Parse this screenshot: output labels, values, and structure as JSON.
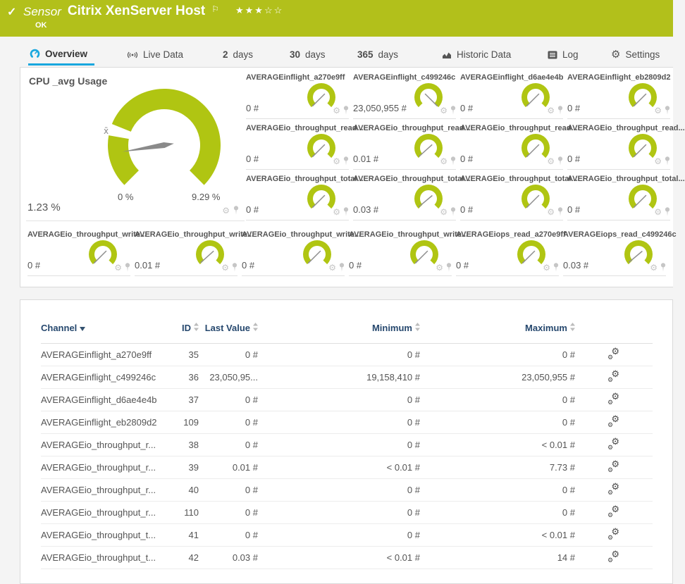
{
  "colors": {
    "header_green": "#b2c01b",
    "gauge_green": "#b0c512",
    "active_blue": "#19a7de",
    "table_header_text": "#26486e",
    "needle_gray": "#8a8a8a"
  },
  "icons": {
    "check": "✓",
    "flag": "⚐",
    "star_filled": "★",
    "star_empty": "☆",
    "gear": "⚙",
    "avg_marker": "x̄"
  },
  "header": {
    "type_label": "Sensor",
    "title": "Citrix XenServer Host",
    "status": "OK",
    "stars_filled": 3,
    "stars_total": 5
  },
  "tabs": [
    {
      "label": "Overview",
      "icon": "overview-gauge",
      "active": true
    },
    {
      "label": "Live Data",
      "icon": "live-data",
      "active": false
    },
    {
      "number": "2",
      "label": "days",
      "active": false
    },
    {
      "number": "30",
      "label": "days",
      "active": false
    },
    {
      "number": "365",
      "label": "days",
      "active": false
    },
    {
      "label": "Historic Data",
      "icon": "historic-data",
      "active": false
    },
    {
      "label": "Log",
      "icon": "log",
      "active": false
    },
    {
      "label": "Settings",
      "icon": "settings-gear",
      "active": false
    }
  ],
  "cpu_panel": {
    "title": "CPU _avg Usage",
    "value": "1.23 %",
    "scale_min": "0 %",
    "scale_max": "9.29 %",
    "needle_deg": 171
  },
  "gauge_rows": [
    [
      {
        "label": "AVERAGEinflight_a270e9ff",
        "value": "0 #",
        "needle_deg": 135
      },
      {
        "label": "AVERAGEinflight_c499246c",
        "value": "23,050,955 #",
        "needle_deg": 45
      },
      {
        "label": "AVERAGEinflight_d6ae4e4b",
        "value": "0 #",
        "needle_deg": 135
      },
      {
        "label": "AVERAGEinflight_eb2809d2",
        "value": "0 #",
        "needle_deg": 135
      }
    ],
    [
      {
        "label": "AVERAGEio_throughput_read...",
        "value": "0 #",
        "needle_deg": 135
      },
      {
        "label": "AVERAGEio_throughput_read...",
        "value": "0.01 #",
        "needle_deg": 138
      },
      {
        "label": "AVERAGEio_throughput_read...",
        "value": "0 #",
        "needle_deg": 135
      },
      {
        "label": "AVERAGEio_throughput_read...",
        "value": "0 #",
        "needle_deg": 135
      }
    ],
    [
      {
        "label": "AVERAGEio_throughput_total...",
        "value": "0 #",
        "needle_deg": 135
      },
      {
        "label": "AVERAGEio_throughput_total...",
        "value": "0.03 #",
        "needle_deg": 140
      },
      {
        "label": "AVERAGEio_throughput_total...",
        "value": "0 #",
        "needle_deg": 135
      },
      {
        "label": "AVERAGEio_throughput_total...",
        "value": "0 #",
        "needle_deg": 135
      }
    ],
    [
      {
        "label": "AVERAGEio_throughput_write...",
        "value": "0 #",
        "needle_deg": 135
      },
      {
        "label": "AVERAGEio_throughput_write...",
        "value": "0.01 #",
        "needle_deg": 138
      },
      {
        "label": "AVERAGEio_throughput_write...",
        "value": "0 #",
        "needle_deg": 135
      },
      {
        "label": "AVERAGEio_throughput_write...",
        "value": "0 #",
        "needle_deg": 135
      },
      {
        "label": "AVERAGEiops_read_a270e9ff",
        "value": "0 #",
        "needle_deg": 135
      },
      {
        "label": "AVERAGEiops_read_c499246c",
        "value": "0.03 #",
        "needle_deg": 140
      }
    ]
  ],
  "table": {
    "columns": [
      {
        "label": "Channel",
        "sort": "desc"
      },
      {
        "label": "ID",
        "sort": "both"
      },
      {
        "label": "Last Value",
        "sort": "both"
      },
      {
        "label": "Minimum",
        "sort": "both"
      },
      {
        "label": "Maximum",
        "sort": "both"
      }
    ],
    "rows": [
      {
        "channel": "AVERAGEinflight_a270e9ff",
        "id": "35",
        "last": "0 #",
        "min": "0 #",
        "max": "0 #"
      },
      {
        "channel": "AVERAGEinflight_c499246c",
        "id": "36",
        "last": "23,050,95...",
        "min": "19,158,410 #",
        "max": "23,050,955 #"
      },
      {
        "channel": "AVERAGEinflight_d6ae4e4b",
        "id": "37",
        "last": "0 #",
        "min": "0 #",
        "max": "0 #"
      },
      {
        "channel": "AVERAGEinflight_eb2809d2",
        "id": "109",
        "last": "0 #",
        "min": "0 #",
        "max": "0 #"
      },
      {
        "channel": "AVERAGEio_throughput_r...",
        "id": "38",
        "last": "0 #",
        "min": "0 #",
        "max": "< 0.01 #"
      },
      {
        "channel": "AVERAGEio_throughput_r...",
        "id": "39",
        "last": "0.01 #",
        "min": "< 0.01 #",
        "max": "7.73 #"
      },
      {
        "channel": "AVERAGEio_throughput_r...",
        "id": "40",
        "last": "0 #",
        "min": "0 #",
        "max": "0 #"
      },
      {
        "channel": "AVERAGEio_throughput_r...",
        "id": "110",
        "last": "0 #",
        "min": "0 #",
        "max": "0 #"
      },
      {
        "channel": "AVERAGEio_throughput_t...",
        "id": "41",
        "last": "0 #",
        "min": "0 #",
        "max": "< 0.01 #"
      },
      {
        "channel": "AVERAGEio_throughput_t...",
        "id": "42",
        "last": "0.03 #",
        "min": "< 0.01 #",
        "max": "14 #"
      }
    ]
  }
}
